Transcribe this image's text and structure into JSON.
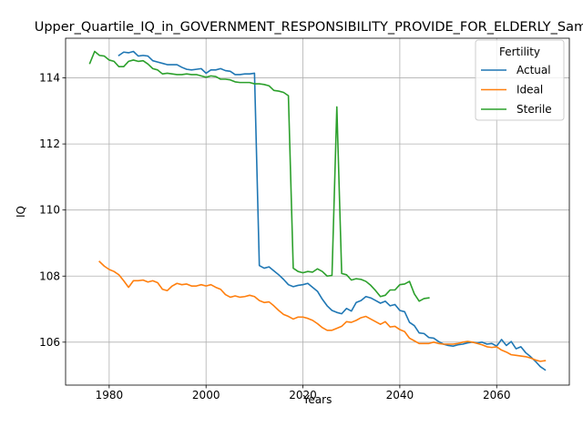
{
  "chart_data": {
    "type": "line",
    "title": "Upper_Quartile_IQ_in_GOVERNMENT_RESPONSIBILITY_PROVIDE_FOR_ELDERLY_Sample",
    "xlabel": "Years",
    "ylabel": "IQ",
    "xlim": [
      1971,
      2075
    ],
    "ylim": [
      104.7,
      115.2
    ],
    "xticks": [
      1980,
      2000,
      2020,
      2040,
      2060
    ],
    "yticks": [
      106,
      108,
      110,
      112,
      114
    ],
    "grid": true,
    "legend": {
      "title": "Fertility",
      "position": "top-right"
    },
    "series": [
      {
        "name": "Actual",
        "color": "#1f77b4",
        "x": [
          1982,
          1983,
          1984,
          1985,
          1986,
          1987,
          1988,
          1989,
          1990,
          1991,
          1992,
          1993,
          1994,
          1995,
          1996,
          1997,
          1998,
          1999,
          2000,
          2001,
          2002,
          2003,
          2004,
          2005,
          2006,
          2007,
          2008,
          2009,
          2010,
          2011,
          2012,
          2013,
          2014,
          2015,
          2016,
          2017,
          2018,
          2019,
          2020,
          2021,
          2022,
          2023,
          2024,
          2025,
          2026,
          2027,
          2028,
          2029,
          2030,
          2031,
          2032,
          2033,
          2034,
          2035,
          2036,
          2037,
          2038,
          2039,
          2040,
          2041,
          2042,
          2043,
          2044,
          2045,
          2046,
          2047,
          2048,
          2049,
          2050,
          2051,
          2052,
          2053,
          2054,
          2055,
          2056,
          2057,
          2058,
          2059,
          2060,
          2061,
          2062,
          2063,
          2064,
          2065,
          2066,
          2067,
          2068,
          2069,
          2070
        ],
        "values": [
          114.68,
          114.78,
          114.76,
          114.8,
          114.66,
          114.68,
          114.66,
          114.52,
          114.48,
          114.44,
          114.4,
          114.4,
          114.4,
          114.32,
          114.26,
          114.24,
          114.26,
          114.28,
          114.14,
          114.24,
          114.24,
          114.28,
          114.22,
          114.2,
          114.1,
          114.1,
          114.12,
          114.12,
          114.14,
          108.32,
          108.24,
          108.28,
          108.16,
          108.04,
          107.9,
          107.74,
          107.68,
          107.72,
          107.74,
          107.78,
          107.66,
          107.54,
          107.3,
          107.1,
          106.96,
          106.9,
          106.86,
          107.02,
          106.94,
          107.2,
          107.26,
          107.38,
          107.34,
          107.26,
          107.18,
          107.24,
          107.1,
          107.14,
          106.96,
          106.92,
          106.6,
          106.5,
          106.28,
          106.26,
          106.14,
          106.12,
          106.02,
          105.94,
          105.9,
          105.88,
          105.92,
          105.94,
          105.98,
          106.0,
          105.98,
          106.0,
          105.94,
          105.96,
          105.88,
          106.08,
          105.9,
          106.02,
          105.8,
          105.86,
          105.68,
          105.56,
          105.42,
          105.26,
          105.16
        ]
      },
      {
        "name": "Ideal",
        "color": "#ff7f0e",
        "x": [
          1978,
          1979,
          1980,
          1981,
          1982,
          1983,
          1984,
          1985,
          1986,
          1987,
          1988,
          1989,
          1990,
          1991,
          1992,
          1993,
          1994,
          1995,
          1996,
          1997,
          1998,
          1999,
          2000,
          2001,
          2002,
          2003,
          2004,
          2005,
          2006,
          2007,
          2008,
          2009,
          2010,
          2011,
          2012,
          2013,
          2014,
          2015,
          2016,
          2017,
          2018,
          2019,
          2020,
          2021,
          2022,
          2023,
          2024,
          2025,
          2026,
          2027,
          2028,
          2029,
          2030,
          2031,
          2032,
          2033,
          2034,
          2035,
          2036,
          2037,
          2038,
          2039,
          2040,
          2041,
          2042,
          2043,
          2044,
          2045,
          2046,
          2047,
          2048,
          2049,
          2050,
          2051,
          2052,
          2053,
          2054,
          2055,
          2056,
          2057,
          2058,
          2059,
          2060,
          2061,
          2062,
          2063,
          2064,
          2065,
          2066,
          2067,
          2068,
          2069,
          2070
        ],
        "values": [
          108.44,
          108.3,
          108.2,
          108.14,
          108.04,
          107.86,
          107.66,
          107.86,
          107.86,
          107.88,
          107.82,
          107.86,
          107.8,
          107.6,
          107.56,
          107.7,
          107.78,
          107.74,
          107.76,
          107.7,
          107.7,
          107.74,
          107.7,
          107.74,
          107.66,
          107.6,
          107.44,
          107.36,
          107.4,
          107.36,
          107.38,
          107.42,
          107.38,
          107.26,
          107.2,
          107.22,
          107.1,
          106.96,
          106.84,
          106.78,
          106.7,
          106.76,
          106.76,
          106.72,
          106.66,
          106.56,
          106.44,
          106.36,
          106.36,
          106.42,
          106.48,
          106.62,
          106.6,
          106.66,
          106.74,
          106.78,
          106.7,
          106.62,
          106.54,
          106.62,
          106.46,
          106.48,
          106.38,
          106.32,
          106.12,
          106.04,
          105.96,
          105.96,
          105.96,
          106.0,
          105.96,
          105.94,
          105.94,
          105.94,
          105.96,
          106.0,
          106.02,
          106.0,
          105.96,
          105.92,
          105.86,
          105.84,
          105.86,
          105.76,
          105.7,
          105.62,
          105.6,
          105.58,
          105.56,
          105.52,
          105.46,
          105.42,
          105.44
        ]
      },
      {
        "name": "Sterile",
        "color": "#2ca02c",
        "x": [
          1976,
          1977,
          1978,
          1979,
          1980,
          1981,
          1982,
          1983,
          1984,
          1985,
          1986,
          1987,
          1988,
          1989,
          1990,
          1991,
          1992,
          1993,
          1994,
          1995,
          1996,
          1997,
          1998,
          1999,
          2000,
          2001,
          2002,
          2003,
          2004,
          2005,
          2006,
          2007,
          2008,
          2009,
          2010,
          2011,
          2012,
          2013,
          2014,
          2015,
          2016,
          2017,
          2018,
          2019,
          2020,
          2021,
          2022,
          2023,
          2024,
          2025,
          2026,
          2027,
          2028,
          2029,
          2030,
          2031,
          2032,
          2033,
          2034,
          2035,
          2036,
          2037,
          2038,
          2039,
          2040,
          2041,
          2042,
          2043,
          2044,
          2045,
          2046
        ],
        "values": [
          114.44,
          114.8,
          114.68,
          114.66,
          114.54,
          114.5,
          114.34,
          114.34,
          114.5,
          114.54,
          114.5,
          114.52,
          114.42,
          114.28,
          114.24,
          114.12,
          114.14,
          114.12,
          114.1,
          114.1,
          114.12,
          114.1,
          114.1,
          114.06,
          114.02,
          114.06,
          114.04,
          113.96,
          113.96,
          113.94,
          113.88,
          113.86,
          113.86,
          113.86,
          113.82,
          113.82,
          113.8,
          113.76,
          113.62,
          113.6,
          113.56,
          113.46,
          108.24,
          108.14,
          108.1,
          108.14,
          108.12,
          108.22,
          108.14,
          108.0,
          108.02,
          113.12,
          108.08,
          108.04,
          107.88,
          107.92,
          107.9,
          107.84,
          107.72,
          107.56,
          107.38,
          107.42,
          107.58,
          107.58,
          107.74,
          107.76,
          107.84,
          107.46,
          107.24,
          107.32,
          107.34
        ]
      }
    ]
  }
}
